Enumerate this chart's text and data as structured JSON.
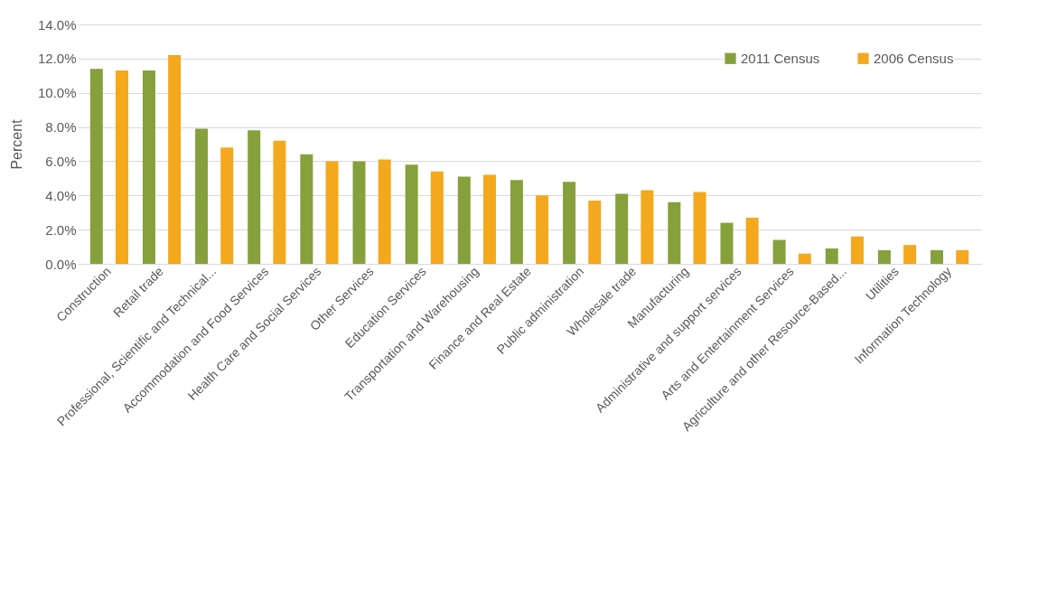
{
  "chart_data": {
    "type": "bar",
    "ylabel": "Percent",
    "categories": [
      "Construction",
      "Retail trade",
      "Professional, Scientific and Technical...",
      "Accommodation and Food Services",
      "Health Care and Social Services",
      "Other Services",
      "Education Services",
      "Transportation and Warehousing",
      "Finance and Real Estate",
      "Public administration",
      "Wholesale trade",
      "Manufacturing",
      "Administrative and support services",
      "Arts and Entertainment Services",
      "Agriculture and other Resource-Based...",
      "Utilities",
      "Information Technology"
    ],
    "series": [
      {
        "name": "2011 Census",
        "color": "#86a03c",
        "values": [
          11.4,
          11.3,
          7.9,
          7.8,
          6.4,
          6.0,
          5.8,
          5.1,
          4.9,
          4.8,
          4.1,
          3.6,
          2.4,
          1.4,
          0.9,
          0.8,
          0.8
        ]
      },
      {
        "name": "2006 Census",
        "color": "#f4a81d",
        "values": [
          11.3,
          12.2,
          6.8,
          7.2,
          6.0,
          6.1,
          5.4,
          5.2,
          4.0,
          3.7,
          4.3,
          4.2,
          2.7,
          0.6,
          1.6,
          1.1,
          0.8
        ]
      }
    ],
    "ylim": [
      0,
      14
    ],
    "yticks": [
      {
        "value": 0,
        "label": "0.0%"
      },
      {
        "value": 2,
        "label": "2.0%"
      },
      {
        "value": 4,
        "label": "4.0%"
      },
      {
        "value": 6,
        "label": "6.0%"
      },
      {
        "value": 8,
        "label": "8.0%"
      },
      {
        "value": 10,
        "label": "10.0%"
      },
      {
        "value": 12,
        "label": "12.0%"
      },
      {
        "value": 14,
        "label": "14.0%"
      }
    ],
    "grid": "y",
    "legend": "top right"
  }
}
